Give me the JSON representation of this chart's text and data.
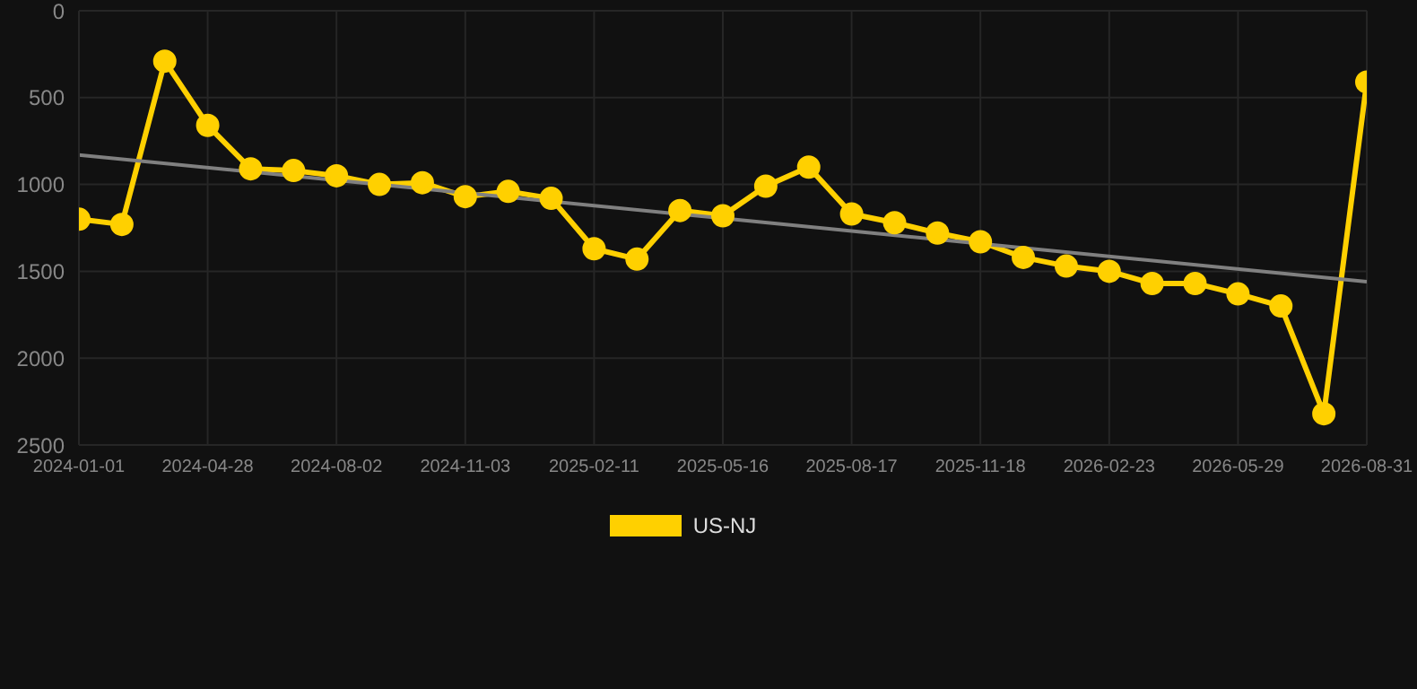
{
  "chart_data": {
    "type": "line",
    "categories": [
      "2024-01-01",
      null,
      null,
      "2024-04-28",
      null,
      null,
      "2024-08-02",
      null,
      null,
      "2024-11-03",
      null,
      null,
      "2025-02-11",
      null,
      null,
      "2025-05-16",
      null,
      null,
      "2025-08-17",
      null,
      null,
      "2025-11-18",
      null,
      null,
      "2026-02-23",
      null,
      null,
      "2026-05-29",
      null,
      null,
      "2026-08-31"
    ],
    "series": [
      {
        "name": "US-NJ",
        "color": "#ffd000",
        "marker": "circle",
        "values": [
          1200,
          1230,
          290,
          660,
          910,
          920,
          950,
          1000,
          990,
          1070,
          1040,
          1080,
          1370,
          1430,
          1150,
          1180,
          1010,
          900,
          1170,
          1220,
          1280,
          1330,
          1420,
          1470,
          1500,
          1570,
          1570,
          1630,
          1700,
          2320,
          410
        ]
      },
      {
        "type": "line",
        "color": "#808080",
        "marker": "none",
        "values": [
          830,
          null,
          null,
          null,
          null,
          null,
          null,
          null,
          null,
          null,
          null,
          null,
          null,
          null,
          null,
          null,
          null,
          null,
          null,
          null,
          null,
          null,
          null,
          null,
          null,
          null,
          null,
          null,
          null,
          null,
          1560
        ]
      }
    ],
    "ylim": [
      2500,
      0
    ],
    "yticks": [
      0,
      500,
      1000,
      1500,
      2000,
      2500
    ],
    "grid": true,
    "legend": "bottom",
    "line_style": "solid"
  }
}
